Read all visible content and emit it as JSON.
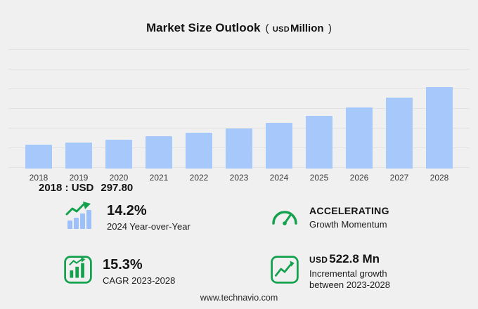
{
  "title": {
    "main": "Market Size Outlook",
    "open": "(",
    "currency": "USD",
    "unit": "Million",
    "close": ")"
  },
  "chart_data": {
    "type": "bar",
    "categories": [
      "2018",
      "2019",
      "2020",
      "2021",
      "2022",
      "2023",
      "2024",
      "2025",
      "2026",
      "2027",
      "2028"
    ],
    "values": [
      297.8,
      331,
      367,
      408,
      453,
      504,
      576,
      666,
      770,
      890,
      1027
    ],
    "title": "Market Size Outlook (USD Million)",
    "xlabel": "",
    "ylabel": "",
    "ylim": [
      0,
      1100
    ],
    "grid": true,
    "y_axis_labels_visible": false,
    "legend": false,
    "bar_color": "#a6c8fa",
    "note": "Only the 2018 value (297.80) is labeled on screen; other values estimated from bar heights."
  },
  "annotation": {
    "year_label": "2018 : USD",
    "value": "297.80"
  },
  "stats": [
    {
      "value": "14.2%",
      "label": "2024 Year-over-Year",
      "icon": "bars-growth-arrow-icon"
    },
    {
      "value": "ACCELERATING",
      "label": "Growth Momentum",
      "icon": "speedometer-icon"
    },
    {
      "value": "15.3%",
      "label": "CAGR 2023-2028",
      "icon": "bar-chart-box-icon"
    },
    {
      "value_prefix": "USD",
      "value": "522.8 Mn",
      "label": "Incremental growth between 2023-2028",
      "icon": "line-chart-box-icon"
    }
  ],
  "footer": {
    "url": "www.technavio.com"
  },
  "colors": {
    "background": "#f0f0f0",
    "bar": "#a6c8fa",
    "accent_green": "#13a14e",
    "gridline": "#e2e2e2"
  }
}
